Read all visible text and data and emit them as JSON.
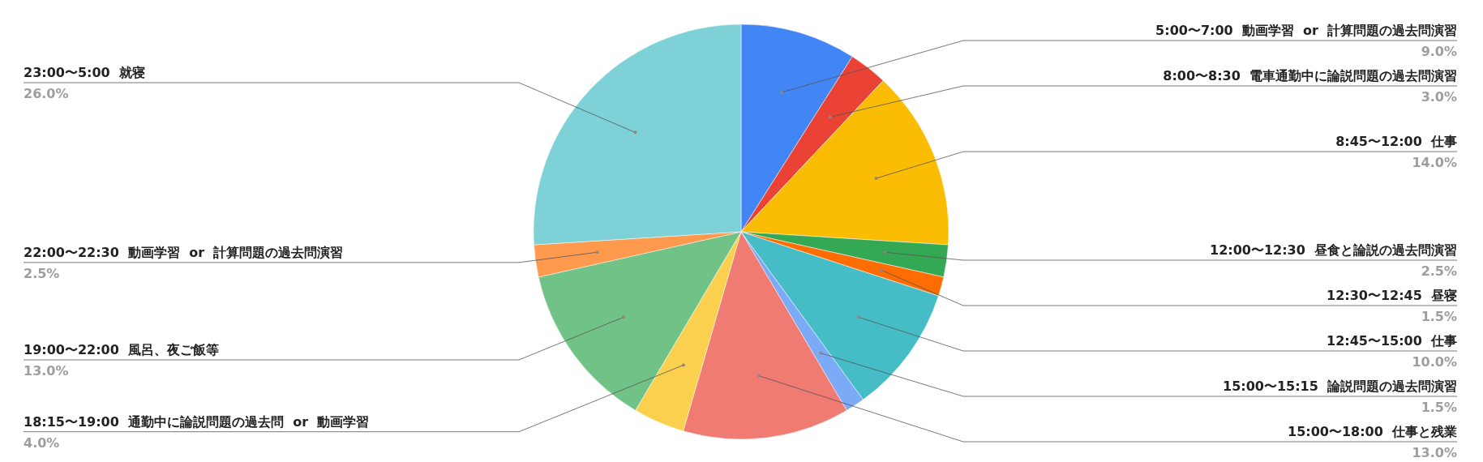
{
  "chart_data": {
    "type": "pie",
    "categories": [
      "5:00〜7:00  動画学習  or  計算問題の過去問演習",
      "8:00〜8:30  電車通勤中に論説問題の過去問演習",
      "8:45〜12:00  仕事",
      "12:00〜12:30  昼食と論説の過去問演習",
      "12:30〜12:45  昼寝",
      "12:45〜15:00  仕事",
      "15:00〜15:15  論説問題の過去問演習",
      "15:00〜18:00  仕事と残業",
      "18:15〜19:00  通勤中に論説問題の過去問  or  動画学習",
      "19:00〜22:00  風呂、夜ご飯等",
      "22:00〜22:30  動画学習  or  計算問題の過去問演習",
      "23:00〜5:00  就寝"
    ],
    "values": [
      9.0,
      3.0,
      14.0,
      2.5,
      1.5,
      10.0,
      1.5,
      13.0,
      4.0,
      13.0,
      2.5,
      26.0
    ],
    "colors": [
      "#4285f4",
      "#ea4335",
      "#fbbc04",
      "#34a853",
      "#ff6d01",
      "#46bdc6",
      "#7baaf7",
      "#f07b72",
      "#fcd04f",
      "#71c287",
      "#ff994d",
      "#7ed1d7"
    ],
    "value_labels": [
      "9.0%",
      "3.0%",
      "14.0%",
      "2.5%",
      "1.5%",
      "10.0%",
      "1.5%",
      "13.0%",
      "4.0%",
      "13.0%",
      "2.5%",
      "26.0%"
    ]
  }
}
